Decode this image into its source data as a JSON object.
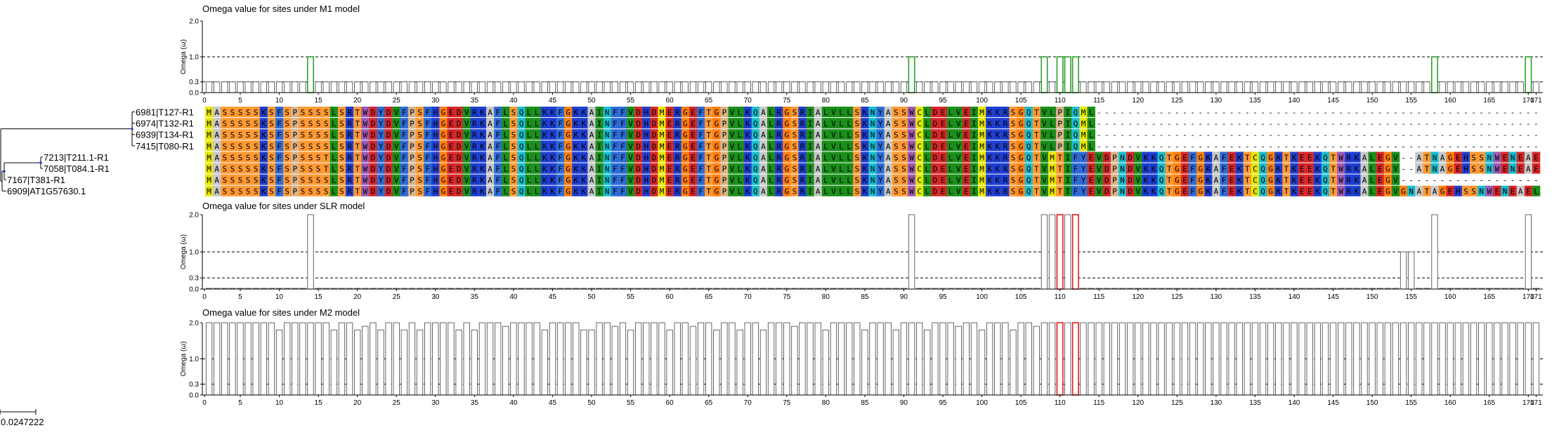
{
  "chart_data": {
    "type": "bar",
    "x_ticks": [
      0,
      5,
      10,
      15,
      20,
      25,
      30,
      35,
      40,
      45,
      50,
      55,
      60,
      65,
      70,
      75,
      80,
      85,
      90,
      95,
      100,
      105,
      110,
      115,
      120,
      125,
      130,
      135,
      140,
      145,
      150,
      155,
      160,
      165,
      170,
      171
    ],
    "n_sites": 171,
    "panels": [
      {
        "title": "Omega value for sites under M1 model",
        "ylabel": "Omega (ω)",
        "yticks": [
          "2.0",
          "1.0",
          "0.3",
          "0.0"
        ],
        "ylim": [
          0,
          2.0
        ],
        "reference_lines": [
          1.0,
          0.3
        ],
        "default_value": 0.3,
        "exceptions": [
          {
            "site": 14,
            "value": 1.0,
            "color": "#2ca02c"
          },
          {
            "site": 91,
            "value": 1.0,
            "color": "#2ca02c"
          },
          {
            "site": 108,
            "value": 1.0,
            "color": "#2ca02c"
          },
          {
            "site": 110,
            "value": 1.0,
            "color": "#2ca02c"
          },
          {
            "site": 111,
            "value": 1.0,
            "color": "#2ca02c"
          },
          {
            "site": 112,
            "value": 1.0,
            "color": "#2ca02c"
          },
          {
            "site": 158,
            "value": 1.0,
            "color": "#2ca02c"
          },
          {
            "site": 170,
            "value": 1.0,
            "color": "#2ca02c"
          }
        ]
      },
      {
        "title": "Omega value for sites under SLR model",
        "ylabel": "Omega (ω)",
        "yticks": [
          "2.0",
          "1.0",
          "0.3",
          "0.0"
        ],
        "ylim": [
          0,
          2.0
        ],
        "reference_lines": [
          1.0,
          0.3
        ],
        "default_value": 0.02,
        "exceptions": [
          {
            "site": 14,
            "value": 2.0,
            "color": "#555555"
          },
          {
            "site": 91,
            "value": 2.0,
            "color": "#555555"
          },
          {
            "site": 108,
            "value": 2.0,
            "color": "#555555"
          },
          {
            "site": 109,
            "value": 2.0,
            "color": "#555555"
          },
          {
            "site": 110,
            "value": 2.0,
            "color": "#e41a1c"
          },
          {
            "site": 111,
            "value": 2.0,
            "color": "#555555"
          },
          {
            "site": 112,
            "value": 2.0,
            "color": "#e41a1c"
          },
          {
            "site": 154,
            "value": 1.0,
            "color": "#555555"
          },
          {
            "site": 155,
            "value": 1.0,
            "color": "#555555"
          },
          {
            "site": 158,
            "value": 2.0,
            "color": "#555555"
          },
          {
            "site": 170,
            "value": 2.0,
            "color": "#555555"
          }
        ]
      },
      {
        "title": "Omega value for sites under M2 model",
        "ylabel": "Omega (ω)",
        "yticks": [
          "2.0",
          "1.0",
          "0.3",
          "0.0"
        ],
        "ylim": [
          0,
          2.0
        ],
        "reference_lines": [
          1.0,
          0.3
        ],
        "default_value": 2.0,
        "exceptions": [
          {
            "site": 10,
            "value": 1.8,
            "color": "#555555"
          },
          {
            "site": 17,
            "value": 1.8,
            "color": "#555555"
          },
          {
            "site": 20,
            "value": 1.8,
            "color": "#555555"
          },
          {
            "site": 21,
            "value": 1.9,
            "color": "#555555"
          },
          {
            "site": 23,
            "value": 1.8,
            "color": "#555555"
          },
          {
            "site": 26,
            "value": 1.8,
            "color": "#555555"
          },
          {
            "site": 28,
            "value": 1.8,
            "color": "#555555"
          },
          {
            "site": 33,
            "value": 1.8,
            "color": "#555555"
          },
          {
            "site": 35,
            "value": 1.8,
            "color": "#555555"
          },
          {
            "site": 39,
            "value": 1.9,
            "color": "#555555"
          },
          {
            "site": 44,
            "value": 1.8,
            "color": "#555555"
          },
          {
            "site": 49,
            "value": 1.8,
            "color": "#555555"
          },
          {
            "site": 50,
            "value": 1.8,
            "color": "#555555"
          },
          {
            "site": 53,
            "value": 1.9,
            "color": "#555555"
          },
          {
            "site": 55,
            "value": 1.8,
            "color": "#555555"
          },
          {
            "site": 60,
            "value": 1.8,
            "color": "#555555"
          },
          {
            "site": 63,
            "value": 1.9,
            "color": "#555555"
          },
          {
            "site": 66,
            "value": 1.8,
            "color": "#555555"
          },
          {
            "site": 69,
            "value": 1.8,
            "color": "#555555"
          },
          {
            "site": 72,
            "value": 1.8,
            "color": "#555555"
          },
          {
            "site": 76,
            "value": 1.9,
            "color": "#555555"
          },
          {
            "site": 80,
            "value": 1.8,
            "color": "#555555"
          },
          {
            "site": 85,
            "value": 1.8,
            "color": "#555555"
          },
          {
            "site": 89,
            "value": 1.8,
            "color": "#555555"
          },
          {
            "site": 93,
            "value": 1.8,
            "color": "#555555"
          },
          {
            "site": 97,
            "value": 1.9,
            "color": "#555555"
          },
          {
            "site": 100,
            "value": 1.8,
            "color": "#555555"
          },
          {
            "site": 104,
            "value": 1.8,
            "color": "#555555"
          },
          {
            "site": 107,
            "value": 1.9,
            "color": "#555555"
          },
          {
            "site": 110,
            "value": 2.0,
            "color": "#e41a1c"
          },
          {
            "site": 112,
            "value": 2.0,
            "color": "#e41a1c"
          }
        ]
      }
    ]
  },
  "alignment": {
    "color_map": {
      "M": "#e6e600",
      "A": "#c8c8c8",
      "S": "#ff9933",
      "T": "#ff9933",
      "L": "#1a8f1a",
      "I": "#1a8f1a",
      "V": "#1a8f1a",
      "F": "#2e6bd6",
      "W": "#9b59b6",
      "Y": "#2e6bd6",
      "R": "#1f3fd1",
      "K": "#1f3fd1",
      "H": "#1f3fd1",
      "D": "#d62728",
      "E": "#d62728",
      "P": "#d9b38c",
      "G": "#ff7f0e",
      "C": "#e6e600",
      "N": "#17becf",
      "Q": "#17becf"
    },
    "taxa": [
      "6981|T127-R1",
      "6974|T132-R1",
      "6939|T134-R1",
      "7415|T080-R1",
      "7213|T211.1-R1",
      "7058|T084.1-R1",
      "7167|T381-R1",
      "6909|AT1G57630.1"
    ],
    "sequences": [
      "MASSSSSKSFSPSSSSLSRTWDYDVFPSFHGEDVRKAFLSQLLKKFGKKAINFFVDHDMERGEFTGPVLKQALRGSRIALVLLSKNYASSWCLDELVEIMKKRSGQTVLPIQML----------------------------------------------------------",
      "MASSSSSKSFSPSSSSLSRTWDYDVFPSFHGEDVRKAFLSQLLKKFGKKAINFFVDHDMERGEFTGPVLKQALRGSRIALVLLSKNYASSWCLDELVEIMKKRSGQTVLPIQML----------------------------------------------------------",
      "MASSSSSKSFSPSSSSLSRTWDYDVFPSFHGEDVRKAFLSQLLKKFGKKAINFFVDHDMERGEFTGPVLKQALRGSRIALVLLSKNYASSWCLDELVEIMKKRSGQTVLPIQML----------------------------------------------------------",
      "MASSSSSKSFSPSSSSLSRTWDYDVFPSFHGEDVRKAFLSQLLKKFGKKAINFFVDHDMERGEFTGPVLKQALRGSRIALVLLSKNYASSWCLDELVEIMKKRSGQTVLPIQML----------------------------------------------------------",
      "MASSSSSKSFSPSSSTLSRTWDYDVFPSFHGEDVRKAFLSQLLKKFGKKAINFFVDHDMERGEFTGPVLKQALRGSRIALVLLSKNYASSWCLDELVEIMKKRSGQTVMTIFYEVDPNDVKKQTGEFGKAFEKTCQGKTKEEKQTWRKALEGV--ATNAGEHSSNWENEAEL",
      "MASSSSSKSFSPSSSTLSRTWDYDVFPSFHGEDVRKAFLSQLLKKFGKKAINFFVDHDMERGEFTGPVLKQALRGSRIALVLLSKNYASSWCLDELVEIMKKRSGQTVMTIFYEVDPNDVKKQTGEFGKAFEKTCQGKTKEEKQTWRKALEGV--ATNAGEHSSNWENEAEL",
      "MASSSSSKSFSPSSSSLSRTWDYDVFPSFHGEDVRKAFLSQLLKKFGKKAINFFVDHDMERGEFTGPVLKQALRGSRIALVLLSKNYASSWCLDELVEIMKKRSGQTVMTIFYEVDPNDVKKQTGEFGKAFEKTCQGKTKEEKQTWRKALEGV---------------------",
      "MASSSSSKSFSPSSSSLSRTWDYDVFPSFHGEDVRKAFLSQLLKKFGKKAINFFVDHDMERGEFTGPVLKQALRGSRIALVLLSKNYASSWCLDELVEIMKKRSGQTVMTIFYEVDPNDVKKQTGEFGKAFEKTCQGKTKEEKQTWRKALEGVGNATAGEHSSNWENEAEL"
    ]
  },
  "scale_bar": {
    "label": "0.0247222"
  }
}
